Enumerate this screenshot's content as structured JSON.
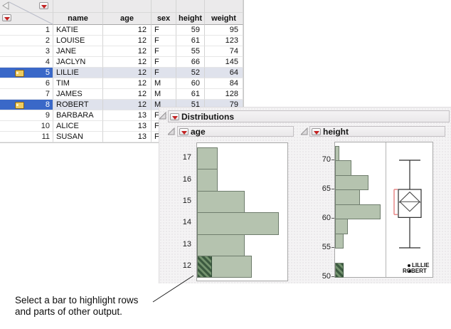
{
  "table": {
    "columns": [
      "name",
      "age",
      "sex",
      "height",
      "weight"
    ],
    "rows": [
      {
        "n": "1",
        "name": "KATIE",
        "age": "12",
        "sex": "F",
        "height": "59",
        "weight": "95",
        "selected": false,
        "labeled": false
      },
      {
        "n": "2",
        "name": "LOUISE",
        "age": "12",
        "sex": "F",
        "height": "61",
        "weight": "123",
        "selected": false,
        "labeled": false
      },
      {
        "n": "3",
        "name": "JANE",
        "age": "12",
        "sex": "F",
        "height": "55",
        "weight": "74",
        "selected": false,
        "labeled": false
      },
      {
        "n": "4",
        "name": "JACLYN",
        "age": "12",
        "sex": "F",
        "height": "66",
        "weight": "145",
        "selected": false,
        "labeled": false
      },
      {
        "n": "5",
        "name": "LILLIE",
        "age": "12",
        "sex": "F",
        "height": "52",
        "weight": "64",
        "selected": true,
        "labeled": true
      },
      {
        "n": "6",
        "name": "TIM",
        "age": "12",
        "sex": "M",
        "height": "60",
        "weight": "84",
        "selected": false,
        "labeled": false
      },
      {
        "n": "7",
        "name": "JAMES",
        "age": "12",
        "sex": "M",
        "height": "61",
        "weight": "128",
        "selected": false,
        "labeled": false
      },
      {
        "n": "8",
        "name": "ROBERT",
        "age": "12",
        "sex": "M",
        "height": "51",
        "weight": "79",
        "selected": true,
        "labeled": true
      },
      {
        "n": "9",
        "name": "BARBARA",
        "age": "13",
        "sex": "F",
        "height": "",
        "weight": "",
        "selected": false,
        "labeled": false
      },
      {
        "n": "10",
        "name": "ALICE",
        "age": "13",
        "sex": "F",
        "height": "",
        "weight": "",
        "selected": false,
        "labeled": false
      },
      {
        "n": "11",
        "name": "SUSAN",
        "age": "13",
        "sex": "F",
        "height": "",
        "weight": "",
        "selected": false,
        "labeled": false
      }
    ]
  },
  "report": {
    "title": "Distributions",
    "panel_titles": [
      "age",
      "height"
    ]
  },
  "chart_data": [
    {
      "type": "bar",
      "title": "age",
      "orientation": "horizontal-histogram",
      "categories": [
        17,
        16,
        15,
        14,
        13,
        12
      ],
      "values": [
        3,
        3,
        7,
        12,
        7,
        8
      ],
      "selected_values": [
        0,
        0,
        0,
        0,
        0,
        2
      ],
      "xlabel": "count (no axis shown)",
      "ylabel": "age",
      "legend": "hatched segment = selected rows"
    },
    {
      "type": "bar",
      "title": "height",
      "orientation": "horizontal-histogram",
      "ylim": [
        50,
        72.5
      ],
      "yticks": [
        50,
        55,
        60,
        65,
        70
      ],
      "bin_width": 2.5,
      "bins_from": [
        50,
        52.5,
        55,
        57.5,
        60,
        62.5,
        65,
        67.5,
        70
      ],
      "values": [
        2,
        0,
        2,
        3,
        11,
        6,
        8,
        4,
        1
      ],
      "selected_values": [
        2,
        0,
        0,
        0,
        0,
        0,
        0,
        0,
        0
      ],
      "boxplot": {
        "whisker_low": 55,
        "q1": 60.2,
        "median": 62.8,
        "q3": 65,
        "whisker_high": 70,
        "mean_diamond_center": 62.9,
        "mean_diamond_half": 1.65,
        "shortest_half_bracket": [
          60.7,
          65
        ]
      },
      "labeled_points": [
        {
          "label": "LILLIE",
          "value": 52
        },
        {
          "label": "ROBERT",
          "value": 51
        }
      ]
    }
  ],
  "caption": {
    "line1": "Select a bar to highlight rows",
    "line2": "and parts of other output."
  },
  "icons": {
    "red_triangle_menu": "red triangle popup menu",
    "disclosure_open": "gray disclosure triangle",
    "collapse_left": "panel collapse triangle",
    "row_label_tag": "yellow label tag"
  },
  "colors": {
    "bar_fill": "#b5c3af",
    "bar_border": "#6f7d6d",
    "selected_hatch_dark": "#3c5a40",
    "selected_row_blue": "#3a68c8",
    "selected_cell_bg": "#dfe2ec",
    "red_triangle": "#c32222",
    "shortest_half_bracket": "#ea9090",
    "header_bar_bg": "#efedee"
  }
}
